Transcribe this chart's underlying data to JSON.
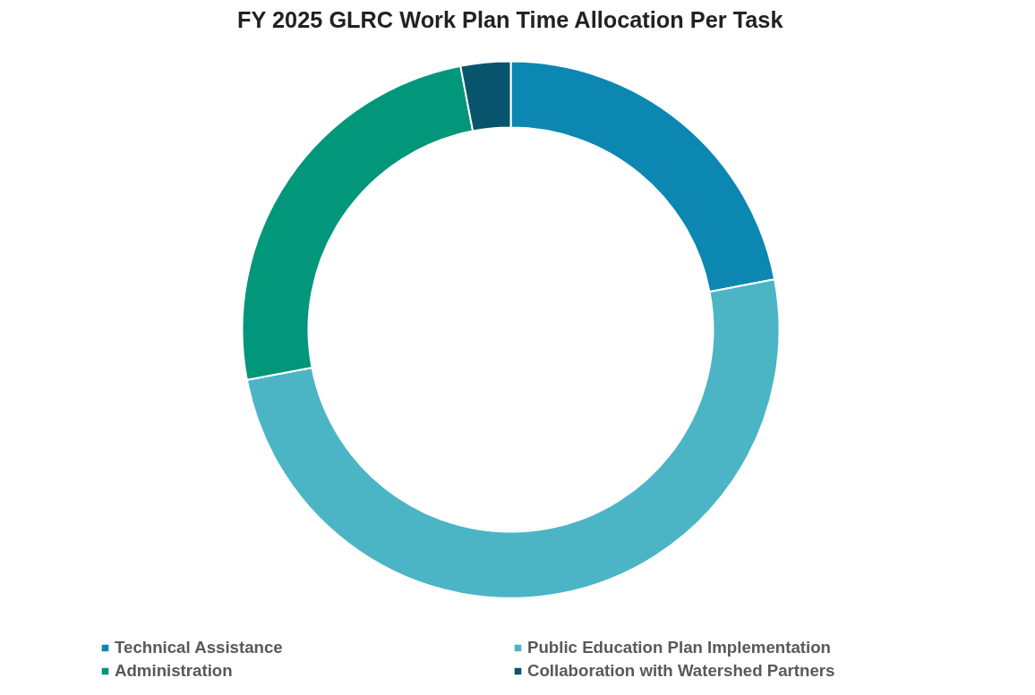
{
  "chart_data": {
    "type": "donut",
    "title": "FY 2025 GLRC Work Plan Time Allocation Per Task",
    "categories": [
      "Technical Assistance",
      "Public Education Plan Implementation",
      "Administration",
      "Collaboration with Watershed Partners"
    ],
    "values": [
      22,
      50,
      25,
      3
    ],
    "colors": [
      "#0b87b2",
      "#4bb5c6",
      "#02967a",
      "#07546c"
    ],
    "legend": "bottom"
  }
}
